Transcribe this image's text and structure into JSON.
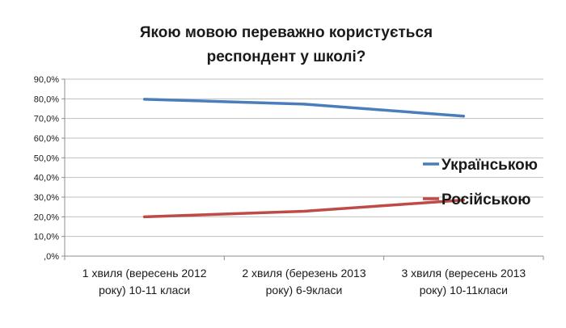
{
  "chart_data": {
    "type": "line",
    "title_lines": [
      "Якою мовою переважно користується",
      "респондент у школі?"
    ],
    "categories": [
      [
        "1 хвиля (вересень 2012",
        "року) 10-11 класи"
      ],
      [
        "2 хвиля (березень 2013",
        "року) 6-9класи"
      ],
      [
        "3 хвиля (вересень 2013",
        "року) 10-11класи"
      ]
    ],
    "ylim": [
      0,
      90
    ],
    "yticks": [
      0,
      10,
      20,
      30,
      40,
      50,
      60,
      70,
      80,
      90
    ],
    "ytick_labels": [
      ",0%",
      "10,0%",
      "20,0%",
      "30,0%",
      "40,0%",
      "50,0%",
      "60,0%",
      "70,0%",
      "80,0%",
      "90,0%"
    ],
    "grid": true,
    "legend_position": "right",
    "series": [
      {
        "name": "Українською",
        "values": [
          79.8,
          77.3,
          71.2
        ],
        "color": "#4a7ebb"
      },
      {
        "name": "Російською",
        "values": [
          20.0,
          22.8,
          28.5
        ],
        "color": "#be4b48"
      }
    ]
  }
}
